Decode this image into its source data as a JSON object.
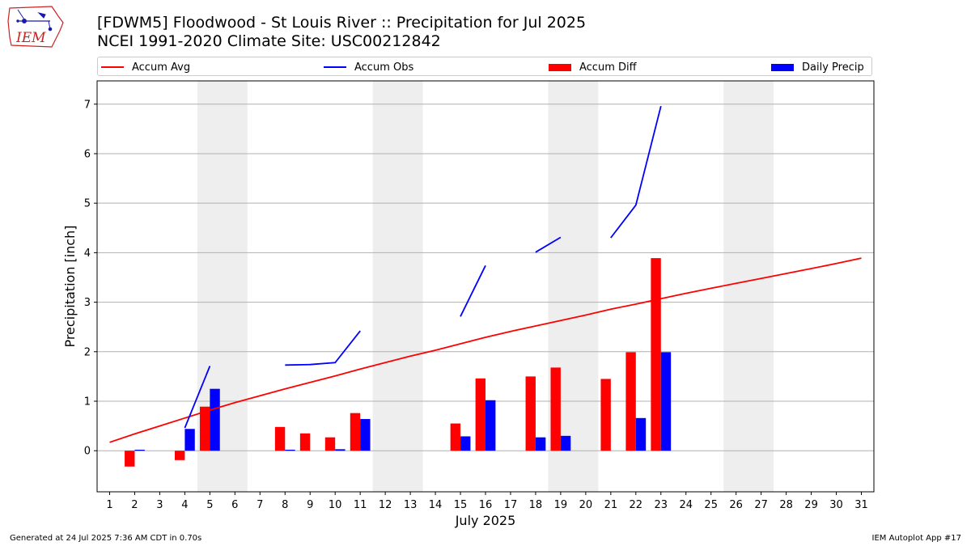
{
  "header": {
    "logo_text": "IEM",
    "title": "[FDWM5] Floodwood - St Louis River :: Precipitation for Jul 2025",
    "subtitle": "NCEI 1991-2020 Climate Site: USC00212842"
  },
  "footer": {
    "generated": "Generated at 24 Jul 2025 7:36 AM CDT in 0.70s",
    "app": "IEM Autoplot App #17"
  },
  "chart_data": {
    "type": "bar",
    "xlabel": "July 2025",
    "ylabel": "Precipitation [inch]",
    "xlim": [
      0.5,
      31.5
    ],
    "ylim": [
      -0.83,
      7.47
    ],
    "yticks": [
      0,
      1,
      2,
      3,
      4,
      5,
      6,
      7
    ],
    "x": [
      1,
      2,
      3,
      4,
      5,
      6,
      7,
      8,
      9,
      10,
      11,
      12,
      13,
      14,
      15,
      16,
      17,
      18,
      19,
      20,
      21,
      22,
      23,
      24,
      25,
      26,
      27,
      28,
      29,
      30,
      31
    ],
    "weekend_shading": [
      [
        4.5,
        6.5
      ],
      [
        11.5,
        13.5
      ],
      [
        18.5,
        20.5
      ],
      [
        25.5,
        27.5
      ]
    ],
    "grid": "horizontal",
    "legend_placement": "top",
    "series": [
      {
        "name": "Accum Avg",
        "kind": "line",
        "color": "#ff0000",
        "values": [
          0.17,
          0.34,
          0.5,
          0.66,
          0.82,
          0.97,
          1.11,
          1.25,
          1.38,
          1.51,
          1.65,
          1.78,
          1.91,
          2.03,
          2.16,
          2.29,
          2.41,
          2.52,
          2.63,
          2.74,
          2.86,
          2.96,
          3.07,
          3.18,
          3.28,
          3.38,
          3.48,
          3.58,
          3.68,
          3.78,
          3.89
        ]
      },
      {
        "name": "Accum Obs",
        "kind": "line",
        "color": "#0000ff",
        "values": [
          null,
          null,
          null,
          0.46,
          1.71,
          null,
          null,
          1.73,
          1.74,
          1.78,
          2.42,
          null,
          null,
          null,
          2.71,
          3.74,
          null,
          4.01,
          4.31,
          null,
          4.3,
          4.96,
          6.96,
          null,
          null,
          null,
          null,
          null,
          null,
          null,
          null
        ]
      },
      {
        "name": "Accum Diff",
        "kind": "bar",
        "color": "#ff0000",
        "values": [
          0,
          -0.32,
          0,
          -0.19,
          0.89,
          0,
          0,
          0.48,
          0.35,
          0.27,
          0.76,
          0,
          0,
          0,
          0.55,
          1.46,
          0,
          1.5,
          1.68,
          0,
          1.45,
          1.99,
          3.89,
          0,
          0,
          0,
          0,
          0,
          0,
          0,
          0
        ]
      },
      {
        "name": "Daily Precip",
        "kind": "bar",
        "color": "#0000ff",
        "values": [
          0,
          0.02,
          0,
          0.44,
          1.25,
          0,
          0,
          0.02,
          0,
          0.03,
          0.64,
          0,
          0,
          0,
          0.29,
          1.02,
          0,
          0.27,
          0.3,
          0,
          0,
          0.66,
          1.99,
          0,
          0,
          0,
          0,
          0,
          0,
          0,
          0
        ]
      }
    ]
  }
}
